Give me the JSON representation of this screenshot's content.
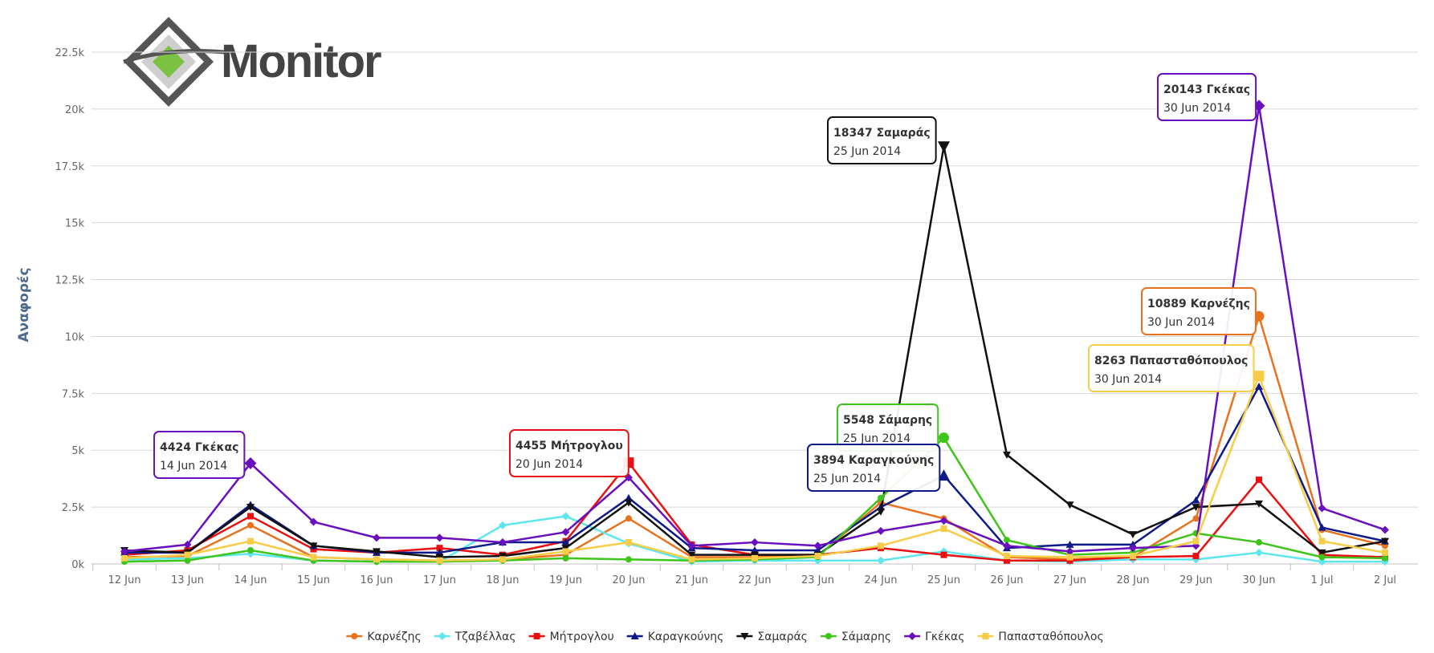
{
  "logo": {
    "text": "Monitor"
  },
  "chart_data": {
    "type": "line",
    "xlabel": "",
    "ylabel": "Αναφορές",
    "ylim": [
      0,
      22500
    ],
    "yticks": [
      {
        "value": 0,
        "label": "0k"
      },
      {
        "value": 2500,
        "label": "2.5k"
      },
      {
        "value": 5000,
        "label": "5k"
      },
      {
        "value": 7500,
        "label": "7.5k"
      },
      {
        "value": 10000,
        "label": "10k"
      },
      {
        "value": 12500,
        "label": "12.5k"
      },
      {
        "value": 15000,
        "label": "15k"
      },
      {
        "value": 17500,
        "label": "17.5k"
      },
      {
        "value": 20000,
        "label": "20k"
      },
      {
        "value": 22500,
        "label": "22.5k"
      }
    ],
    "grid": true,
    "legend_position": "bottom",
    "categories": [
      "12 Jun",
      "13 Jun",
      "14 Jun",
      "15 Jun",
      "16 Jun",
      "17 Jun",
      "18 Jun",
      "19 Jun",
      "20 Jun",
      "21 Jun",
      "22 Jun",
      "23 Jun",
      "24 Jun",
      "25 Jun",
      "26 Jun",
      "27 Jun",
      "28 Jun",
      "29 Jun",
      "30 Jun",
      "1 Jul",
      "2 Jul"
    ],
    "series": [
      {
        "name": "Καρνέζης",
        "color": "#e8731f",
        "marker": "circle",
        "values": [
          300,
          350,
          1700,
          300,
          200,
          150,
          200,
          400,
          2000,
          300,
          300,
          350,
          2700,
          2000,
          300,
          200,
          300,
          2000,
          10889,
          1500,
          800
        ]
      },
      {
        "name": "Τζαβέλλας",
        "color": "#5ee6ee",
        "marker": "diamond",
        "values": [
          200,
          250,
          450,
          150,
          100,
          100,
          1700,
          2100,
          900,
          100,
          150,
          150,
          150,
          550,
          150,
          100,
          200,
          200,
          500,
          100,
          100
        ]
      },
      {
        "name": "Μήτρογλου",
        "color": "#e81010",
        "marker": "square",
        "values": [
          400,
          600,
          2100,
          650,
          500,
          700,
          400,
          1000,
          4455,
          850,
          400,
          400,
          700,
          400,
          150,
          150,
          300,
          350,
          3700,
          400,
          300
        ]
      },
      {
        "name": "Καραγκούνης",
        "color": "#0f1a8a",
        "marker": "triangle",
        "values": [
          500,
          500,
          2600,
          800,
          500,
          500,
          950,
          950,
          2900,
          700,
          600,
          600,
          2500,
          3894,
          700,
          850,
          850,
          2800,
          7800,
          1600,
          1000
        ]
      },
      {
        "name": "Σαμαράς",
        "color": "#111111",
        "marker": "triangle-down",
        "values": [
          600,
          500,
          2500,
          800,
          550,
          300,
          350,
          700,
          2700,
          400,
          400,
          400,
          2300,
          18347,
          4800,
          2600,
          1300,
          2500,
          2650,
          500,
          1000
        ]
      },
      {
        "name": "Σάμαρης",
        "color": "#3ec41a",
        "marker": "circle",
        "values": [
          100,
          150,
          600,
          150,
          100,
          100,
          150,
          250,
          200,
          150,
          200,
          300,
          2900,
          5548,
          1050,
          400,
          500,
          1350,
          950,
          300,
          250
        ]
      },
      {
        "name": "Γκέκας",
        "color": "#6a0fbd",
        "marker": "diamond",
        "values": [
          550,
          850,
          4424,
          1850,
          1150,
          1150,
          950,
          1400,
          3800,
          800,
          950,
          800,
          1450,
          1900,
          800,
          550,
          700,
          800,
          20143,
          2450,
          1500
        ]
      },
      {
        "name": "Παπασταθόπουλος",
        "color": "#f7cc48",
        "marker": "square",
        "values": [
          250,
          400,
          1000,
          300,
          200,
          150,
          200,
          550,
          950,
          200,
          250,
          350,
          800,
          1550,
          350,
          300,
          350,
          1000,
          8263,
          1000,
          500
        ]
      }
    ],
    "annotations": [
      {
        "series": "Γκέκας",
        "value": 4424,
        "label": "4424 Γκέκας",
        "date": "14 Jun 2014"
      },
      {
        "series": "Μήτρογλου",
        "value": 4455,
        "label": "4455 Μήτρογλου",
        "date": "20 Jun 2014"
      },
      {
        "series": "Σαμαράς",
        "value": 18347,
        "label": "18347 Σαμαράς",
        "date": "25 Jun 2014"
      },
      {
        "series": "Σάμαρης",
        "value": 5548,
        "label": "5548 Σάμαρης",
        "date": "25 Jun 2014"
      },
      {
        "series": "Καραγκούνης",
        "value": 3894,
        "label": "3894 Καραγκούνης",
        "date": "25 Jun 2014"
      },
      {
        "series": "Γκέκας",
        "value": 20143,
        "label": "20143 Γκέκας",
        "date": "30 Jun 2014"
      },
      {
        "series": "Καρνέζης",
        "value": 10889,
        "label": "10889 Καρνέζης",
        "date": "30 Jun 2014"
      },
      {
        "series": "Παπασταθόπουλος",
        "value": 8263,
        "label": "8263 Παπασταθόπουλος",
        "date": "30 Jun 2014"
      }
    ]
  }
}
